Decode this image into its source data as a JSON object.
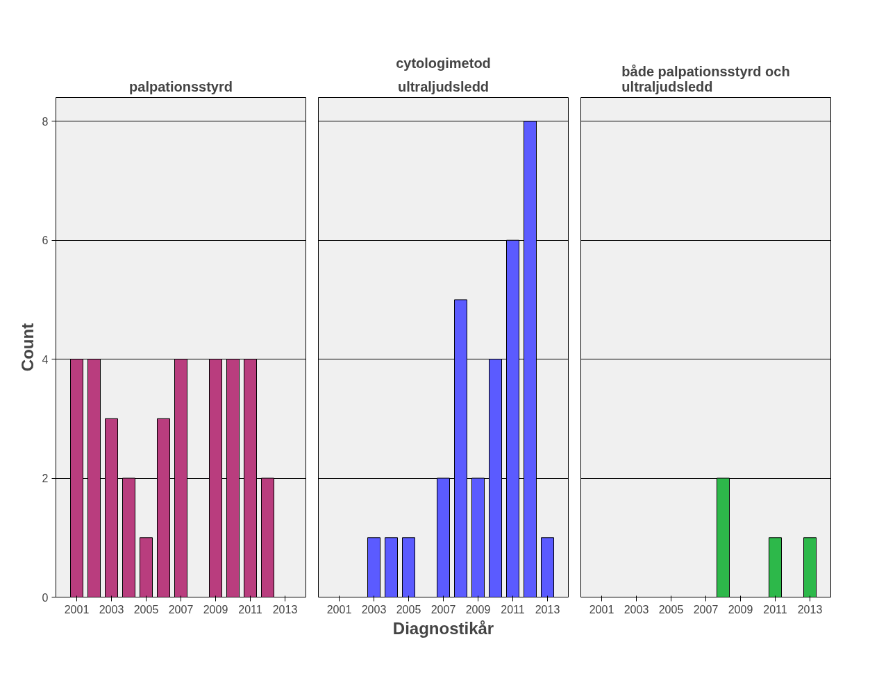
{
  "chart_data": [
    {
      "type": "bar",
      "title": "palpationsstyrd",
      "ylabel": "Count",
      "x": [
        2001,
        2002,
        2003,
        2004,
        2005,
        2006,
        2007,
        2009,
        2010,
        2011,
        2012
      ],
      "values": [
        4,
        4,
        3,
        2,
        1,
        3,
        4,
        4,
        4,
        4,
        2
      ],
      "color": "#b93d7e",
      "xlim": [
        1999.8,
        2014.2
      ],
      "xticks": [
        2001,
        2003,
        2005,
        2007,
        2009,
        2011,
        2013
      ],
      "ylim": [
        0,
        8.4
      ],
      "yticks": [
        0,
        2,
        4,
        6,
        8
      ],
      "grid": "y"
    },
    {
      "type": "bar",
      "title": "ultraljudsledd",
      "annotations": [
        "cytologimetod"
      ],
      "xlabel": "Diagnostikår",
      "x": [
        2003,
        2004,
        2005,
        2007,
        2008,
        2009,
        2010,
        2011,
        2012,
        2013
      ],
      "values": [
        1,
        1,
        1,
        2,
        5,
        2,
        4,
        6,
        8,
        1
      ],
      "color": "#5b5bff",
      "xlim": [
        1999.8,
        2014.2
      ],
      "xticks": [
        2001,
        2003,
        2005,
        2007,
        2009,
        2011,
        2013
      ],
      "ylim": [
        0,
        8.4
      ],
      "yticks": [
        0,
        2,
        4,
        6,
        8
      ],
      "grid": "y",
      "tick_labels": "x"
    },
    {
      "type": "bar",
      "title": "både palpationsstyrd och\nultraljudsledd",
      "x": [
        2008,
        2011,
        2013
      ],
      "values": [
        2,
        1,
        1
      ],
      "color": "#2db84a",
      "xlim": [
        1999.8,
        2014.2
      ],
      "xticks": [
        2001,
        2003,
        2005,
        2007,
        2009,
        2011,
        2013
      ],
      "ylim": [
        0,
        8.4
      ],
      "yticks": [
        0,
        2,
        4,
        6,
        8
      ],
      "grid": "y",
      "tick_labels": "x"
    }
  ]
}
